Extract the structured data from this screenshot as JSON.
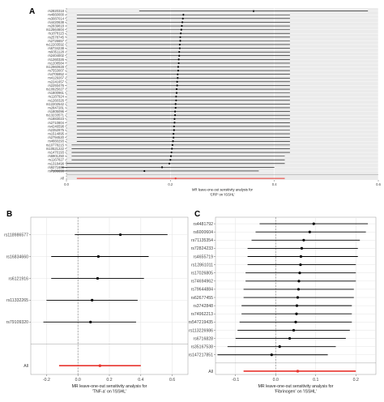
{
  "panels": [
    {
      "letter": "A",
      "chart_data": {
        "type": "scatter",
        "style": "leave-one-out forest plot with horizontal confidence-interval segments",
        "xlabel": "MR leave-one-out sensitivity analysis for\n'CRP' on 'ISSHL'",
        "xlim": [
          0,
          0.6
        ],
        "x_ticks": [
          "0.0",
          "0.2",
          "0.4",
          "0.6"
        ],
        "reference_line_x": 0,
        "grid": true,
        "background": "#ebebeb",
        "colors": {
          "snp": "#000000",
          "all": "#e8352e"
        },
        "rows": [
          {
            "label": "rs2820318",
            "est": 0.36,
            "lo": 0.14,
            "hi": 0.58
          },
          {
            "label": "rs4660000",
            "est": 0.225,
            "lo": 0.02,
            "hi": 0.43
          },
          {
            "label": "rs3087014",
            "est": 0.224,
            "lo": 0.02,
            "hi": 0.43
          },
          {
            "label": "rs4420638",
            "est": 0.223,
            "lo": 0.02,
            "hi": 0.43
          },
          {
            "label": "rs2839818",
            "est": 0.222,
            "lo": 0.02,
            "hi": 0.43
          },
          {
            "label": "rs12564604",
            "est": 0.221,
            "lo": 0.02,
            "hi": 0.43
          },
          {
            "label": "rs1878115",
            "est": 0.22,
            "lo": 0.02,
            "hi": 0.43
          },
          {
            "label": "rs2578745",
            "est": 0.219,
            "lo": 0.02,
            "hi": 0.43
          },
          {
            "label": "rs2726657",
            "est": 0.219,
            "lo": 0.02,
            "hi": 0.43
          },
          {
            "label": "rs12203592",
            "est": 0.218,
            "lo": 0.02,
            "hi": 0.43
          },
          {
            "label": "rs6734238",
            "est": 0.218,
            "lo": 0.02,
            "hi": 0.43
          },
          {
            "label": "rs9351128",
            "est": 0.217,
            "lo": 0.02,
            "hi": 0.43
          },
          {
            "label": "rs2404002",
            "est": 0.217,
            "lo": 0.02,
            "hi": 0.43
          },
          {
            "label": "rs1260326",
            "est": 0.216,
            "lo": 0.02,
            "hi": 0.43
          },
          {
            "label": "rs1208584",
            "est": 0.216,
            "lo": 0.02,
            "hi": 0.43
          },
          {
            "label": "rs12960928",
            "est": 0.215,
            "lo": 0.02,
            "hi": 0.43
          },
          {
            "label": "rs7553007",
            "est": 0.215,
            "lo": 0.02,
            "hi": 0.43
          },
          {
            "label": "rs4705952",
            "est": 0.214,
            "lo": 0.02,
            "hi": 0.43
          },
          {
            "label": "rs4129267",
            "est": 0.214,
            "lo": 0.02,
            "hi": 0.43
          },
          {
            "label": "rs2241657",
            "est": 0.213,
            "lo": 0.02,
            "hi": 0.43
          },
          {
            "label": "rs2293476",
            "est": 0.213,
            "lo": 0.02,
            "hi": 0.43
          },
          {
            "label": "rs10925027",
            "est": 0.212,
            "lo": 0.02,
            "hi": 0.43
          },
          {
            "label": "rs1800961",
            "est": 0.212,
            "lo": 0.02,
            "hi": 0.43
          },
          {
            "label": "rs1187924",
            "est": 0.211,
            "lo": 0.02,
            "hi": 0.43
          },
          {
            "label": "rs1260326",
            "est": 0.211,
            "lo": 0.02,
            "hi": 0.43
          },
          {
            "label": "rs12202542",
            "est": 0.21,
            "lo": 0.02,
            "hi": 0.43
          },
          {
            "label": "rs2847281",
            "est": 0.21,
            "lo": 0.02,
            "hi": 0.43
          },
          {
            "label": "rs1805096",
            "est": 0.209,
            "lo": 0.02,
            "hi": 0.43
          },
          {
            "label": "rs13233571",
            "est": 0.209,
            "lo": 0.02,
            "hi": 0.43
          },
          {
            "label": "rs1883023",
            "est": 0.208,
            "lo": 0.02,
            "hi": 0.43
          },
          {
            "label": "rs2710804",
            "est": 0.208,
            "lo": 0.02,
            "hi": 0.43
          },
          {
            "label": "rs4246598",
            "est": 0.207,
            "lo": 0.02,
            "hi": 0.43
          },
          {
            "label": "rs2352975",
            "est": 0.207,
            "lo": 0.02,
            "hi": 0.43
          },
          {
            "label": "rs1514895",
            "est": 0.206,
            "lo": 0.02,
            "hi": 0.43
          },
          {
            "label": "rs2794520",
            "est": 0.206,
            "lo": 0.02,
            "hi": 0.43
          },
          {
            "label": "rs4660293",
            "est": 0.205,
            "lo": 0.02,
            "hi": 0.43
          },
          {
            "label": "rs10778215",
            "est": 0.204,
            "lo": 0.01,
            "hi": 0.43
          },
          {
            "label": "rs10521222",
            "est": 0.203,
            "lo": 0.01,
            "hi": 0.43
          },
          {
            "label": "rs1470193",
            "est": 0.202,
            "lo": 0.01,
            "hi": 0.43
          },
          {
            "label": "rs6901250",
            "est": 0.201,
            "lo": 0.01,
            "hi": 0.42
          },
          {
            "label": "rs1167827",
            "est": 0.2,
            "lo": 0.01,
            "hi": 0.42
          },
          {
            "label": "rs1318498",
            "est": 0.198,
            "lo": 0.0,
            "hi": 0.42
          },
          {
            "label": "rs9271608",
            "est": 0.184,
            "lo": -0.01,
            "hi": 0.4
          },
          {
            "label": "rs7106698",
            "est": 0.15,
            "lo": -0.03,
            "hi": 0.37
          }
        ],
        "all": {
          "label": "All",
          "est": 0.21,
          "lo": 0.02,
          "hi": 0.42
        }
      }
    },
    {
      "letter": "B",
      "chart_data": {
        "type": "scatter",
        "style": "leave-one-out forest plot with horizontal confidence-interval segments",
        "xlabel": "MR leave-one-out sensitivity analysis for\n'TNF-a' on 'ISSHL'",
        "xlim": [
          -0.3,
          0.7
        ],
        "x_ticks": [
          "-0.2",
          "0.0",
          "0.2",
          "0.4",
          "0.6"
        ],
        "reference_line_x": 0,
        "grid": true,
        "background": "#ffffff",
        "colors": {
          "snp": "#000000",
          "all": "#e8352e"
        },
        "rows": [
          {
            "label": "rs118986577",
            "est": 0.27,
            "lo": -0.02,
            "hi": 0.57
          },
          {
            "label": "rs16834660",
            "est": 0.13,
            "lo": -0.17,
            "hi": 0.45
          },
          {
            "label": "rs6121916",
            "est": 0.125,
            "lo": -0.17,
            "hi": 0.42
          },
          {
            "label": "rs11332265",
            "est": 0.09,
            "lo": -0.2,
            "hi": 0.38
          },
          {
            "label": "rs79109320",
            "est": 0.08,
            "lo": -0.22,
            "hi": 0.37
          }
        ],
        "all": {
          "label": "All",
          "est": 0.14,
          "lo": -0.12,
          "hi": 0.4
        }
      }
    },
    {
      "letter": "C",
      "chart_data": {
        "type": "scatter",
        "style": "leave-one-out forest plot with horizontal confidence-interval segments",
        "xlabel": "MR leave-one-out sensitivity analysis for\n'Fibrinogen' on 'ISSHL'",
        "xlim": [
          -0.15,
          0.25
        ],
        "x_ticks": [
          "-0.1",
          "0.0",
          "0.1",
          "0.2"
        ],
        "reference_line_x": 0,
        "grid": true,
        "background": "#ffffff",
        "colors": {
          "snp": "#000000",
          "all": "#e8352e"
        },
        "rows": [
          {
            "label": "rs4481792",
            "est": 0.095,
            "lo": -0.04,
            "hi": 0.23
          },
          {
            "label": "rs6000604",
            "est": 0.085,
            "lo": -0.05,
            "hi": 0.225
          },
          {
            "label": "rs71135354",
            "est": 0.07,
            "lo": -0.06,
            "hi": 0.21
          },
          {
            "label": "rs72824233",
            "est": 0.065,
            "lo": -0.07,
            "hi": 0.205
          },
          {
            "label": "rs4655719",
            "est": 0.063,
            "lo": -0.07,
            "hi": 0.205
          },
          {
            "label": "rs12861011",
            "est": 0.062,
            "lo": -0.07,
            "hi": 0.2
          },
          {
            "label": "rs17026805",
            "est": 0.06,
            "lo": -0.075,
            "hi": 0.2
          },
          {
            "label": "rs74694962",
            "est": 0.058,
            "lo": -0.075,
            "hi": 0.2
          },
          {
            "label": "rs79644884",
            "est": 0.057,
            "lo": -0.08,
            "hi": 0.195
          },
          {
            "label": "rs62677455",
            "est": 0.055,
            "lo": -0.08,
            "hi": 0.195
          },
          {
            "label": "rs3742848",
            "est": 0.053,
            "lo": -0.085,
            "hi": 0.19
          },
          {
            "label": "rs74962213",
            "est": 0.052,
            "lo": -0.085,
            "hi": 0.19
          },
          {
            "label": "rs547219435",
            "est": 0.05,
            "lo": -0.09,
            "hi": 0.19
          },
          {
            "label": "rs113226986",
            "est": 0.045,
            "lo": -0.095,
            "hi": 0.185
          },
          {
            "label": "rs6716828",
            "est": 0.035,
            "lo": -0.1,
            "hi": 0.175
          },
          {
            "label": "rs35167538",
            "est": 0.01,
            "lo": -0.12,
            "hi": 0.15
          },
          {
            "label": "rs147217851",
            "est": -0.01,
            "lo": -0.145,
            "hi": 0.13
          }
        ],
        "all": {
          "label": "All",
          "est": 0.055,
          "lo": -0.08,
          "hi": 0.2
        }
      }
    }
  ]
}
